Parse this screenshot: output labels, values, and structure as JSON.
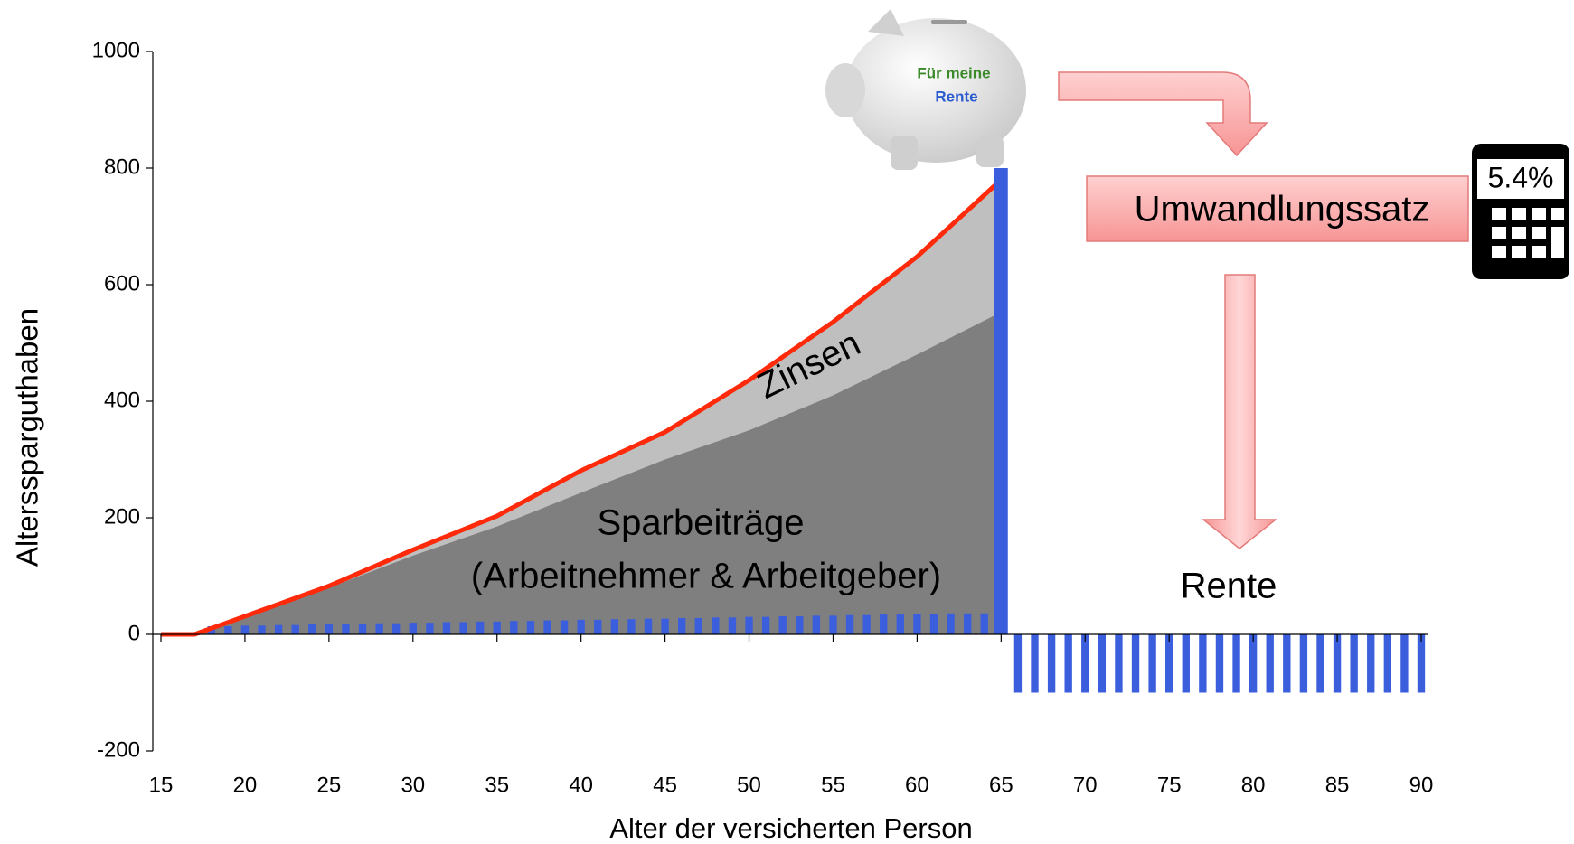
{
  "chart_data": {
    "type": "combo",
    "x_label": "Alter der versicherten Person",
    "y_label": "Alterssparguthaben",
    "xlim": [
      15,
      90
    ],
    "xticks": [
      15,
      20,
      25,
      30,
      35,
      40,
      45,
      50,
      55,
      60,
      65,
      70,
      75,
      80,
      85,
      90
    ],
    "ylim": [
      -200,
      1000
    ],
    "yticks": [
      -200,
      0,
      200,
      400,
      600,
      800,
      1000
    ],
    "series": [
      {
        "type": "area",
        "color": "#bfbfbf",
        "line_color": "#ff2a0a",
        "x": [
          15,
          17,
          20,
          25,
          30,
          35,
          40,
          45,
          50,
          55,
          60,
          65
        ],
        "values": [
          0,
          0,
          31,
          83,
          145,
          203,
          281,
          347,
          436,
          536,
          648,
          780
        ]
      },
      {
        "type": "area",
        "color": "#7f7f7f",
        "x": [
          15,
          17,
          20,
          25,
          30,
          35,
          40,
          45,
          50,
          55,
          60,
          65
        ],
        "values": [
          0,
          0,
          30,
          80,
          135,
          185,
          243,
          300,
          350,
          410,
          480,
          553
        ]
      },
      {
        "type": "bar",
        "color": "#3b5fdc",
        "x": [
          18,
          19,
          20,
          21,
          22,
          23,
          24,
          25,
          26,
          27,
          28,
          29,
          30,
          31,
          32,
          33,
          34,
          35,
          36,
          37,
          38,
          39,
          40,
          41,
          42,
          43,
          44,
          45,
          46,
          47,
          48,
          49,
          50,
          51,
          52,
          53,
          54,
          55,
          56,
          57,
          58,
          59,
          60,
          61,
          62,
          63,
          64,
          66,
          67,
          68,
          69,
          70,
          71,
          72,
          73,
          74,
          75,
          76,
          77,
          78,
          79,
          80,
          81,
          82,
          83,
          84,
          85,
          86,
          87,
          88,
          89,
          90
        ],
        "values": [
          14,
          14,
          15,
          15,
          16,
          16,
          17,
          17,
          18,
          18,
          19,
          19,
          20,
          20,
          21,
          21,
          22,
          22,
          23,
          23,
          24,
          24,
          25,
          25,
          26,
          26,
          27,
          27,
          28,
          28,
          29,
          29,
          30,
          30,
          31,
          31,
          32,
          32,
          33,
          33,
          34,
          34,
          35,
          35,
          36,
          36,
          36,
          -100,
          -100,
          -100,
          -100,
          -100,
          -100,
          -100,
          -100,
          -100,
          -100,
          -100,
          -100,
          -100,
          -100,
          -100,
          -100,
          -100,
          -100,
          -100,
          -100,
          -100,
          -100,
          -100,
          -100,
          -100
        ]
      },
      {
        "type": "bar",
        "color": "#3b5fdc",
        "x": [
          65
        ],
        "values": [
          800
        ]
      }
    ],
    "annotations": {
      "interest": "Zinsen",
      "savings": "Sparbeiträge",
      "savings_sub": "(Arbeitnehmer & Arbeitgeber)",
      "conversion": "Umwandlungssatz",
      "rate": "5.4%",
      "pension": "Rente",
      "piggy_line1": "Für meine",
      "piggy_line2": "Rente"
    }
  }
}
